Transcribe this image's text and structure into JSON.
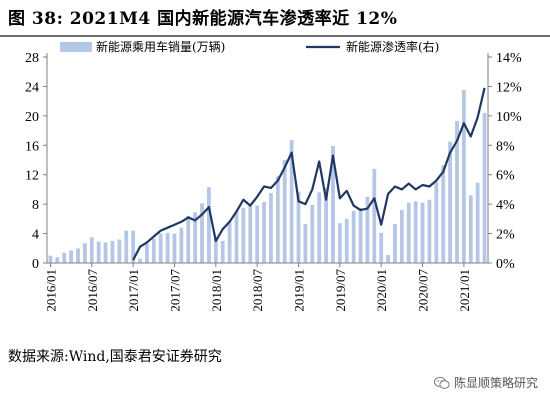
{
  "figure": {
    "title": "图 38:  2021M4 国内新能源汽车渗透率近 12%",
    "source": "数据来源:Wind,国泰君安证券研究",
    "watermark": "陈显顺策略研究"
  },
  "colors": {
    "bars": "#b4c7e7",
    "line": "#1f3864",
    "axis": "#808080"
  },
  "chart_data": {
    "type": "bar+line",
    "legend": {
      "placement": "top",
      "items": [
        "新能源乘用车销量(万辆)",
        "新能源渗透率(右)"
      ]
    },
    "x": [
      "2016/01",
      "2016/02",
      "2016/03",
      "2016/04",
      "2016/05",
      "2016/06",
      "2016/07",
      "2016/08",
      "2016/09",
      "2016/10",
      "2016/11",
      "2016/12",
      "2017/01",
      "2017/02",
      "2017/03",
      "2017/04",
      "2017/05",
      "2017/06",
      "2017/07",
      "2017/08",
      "2017/09",
      "2017/10",
      "2017/11",
      "2017/12",
      "2018/01",
      "2018/02",
      "2018/03",
      "2018/04",
      "2018/05",
      "2018/06",
      "2018/07",
      "2018/08",
      "2018/09",
      "2018/10",
      "2018/11",
      "2018/12",
      "2019/01",
      "2019/02",
      "2019/03",
      "2019/04",
      "2019/05",
      "2019/06",
      "2019/07",
      "2019/08",
      "2019/09",
      "2019/10",
      "2019/11",
      "2019/12",
      "2020/01",
      "2020/02",
      "2020/03",
      "2020/04",
      "2020/05",
      "2020/06",
      "2020/07",
      "2020/08",
      "2020/09",
      "2020/10",
      "2020/11",
      "2020/12",
      "2021/01",
      "2021/02",
      "2021/03",
      "2021/04"
    ],
    "x_tick_labels": [
      "2016/01",
      "2016/07",
      "2017/01",
      "2017/07",
      "2018/01",
      "2018/07",
      "2019/01",
      "2019/07",
      "2020/01",
      "2020/07",
      "2021/01"
    ],
    "series": [
      {
        "name": "新能源乘用车销量(万辆)",
        "type": "bar",
        "axis": "left",
        "values": [
          1.0,
          0.8,
          1.4,
          1.7,
          2.0,
          2.7,
          3.5,
          2.9,
          2.8,
          3.0,
          3.2,
          4.4,
          4.4,
          0.6,
          2.6,
          3.3,
          4.0,
          4.1,
          4.0,
          4.8,
          6.4,
          6.9,
          8.1,
          10.3,
          3.5,
          3.0,
          5.6,
          7.0,
          7.5,
          7.7,
          7.8,
          8.3,
          9.5,
          11.8,
          14.0,
          16.7,
          9.7,
          5.3,
          7.9,
          9.6,
          10.2,
          15.9,
          5.4,
          6.0,
          7.1,
          7.5,
          9.0,
          12.8,
          4.1,
          1.1,
          5.3,
          7.2,
          8.2,
          8.4,
          8.2,
          8.6,
          11.0,
          13.3,
          16.5,
          19.3,
          23.5,
          9.2,
          10.9,
          20.4
        ]
      },
      {
        "name": "新能源渗透率(右)",
        "type": "line",
        "axis": "right",
        "values": [
          null,
          null,
          null,
          null,
          null,
          null,
          null,
          null,
          null,
          null,
          null,
          null,
          0.2,
          1.1,
          1.4,
          1.8,
          2.2,
          2.4,
          2.6,
          2.8,
          3.1,
          2.9,
          3.3,
          3.8,
          1.5,
          2.3,
          2.8,
          3.5,
          4.3,
          3.9,
          4.5,
          5.2,
          5.1,
          5.6,
          6.5,
          7.5,
          4.2,
          4.0,
          5.0,
          6.9,
          4.3,
          7.3,
          4.4,
          4.9,
          3.9,
          3.6,
          3.7,
          4.4,
          2.6,
          4.7,
          5.2,
          5.0,
          5.4,
          5.0,
          5.3,
          5.2,
          5.6,
          6.2,
          7.5,
          8.3,
          9.5,
          8.6,
          9.9,
          11.9
        ]
      }
    ],
    "y_left": {
      "ylim": [
        0,
        28
      ],
      "ticks": [
        0,
        4,
        8,
        12,
        16,
        20,
        24,
        28
      ],
      "labels": [
        "0",
        "4",
        "8",
        "12",
        "16",
        "20",
        "24",
        "28"
      ]
    },
    "y_right": {
      "ylim": [
        0,
        14
      ],
      "ticks": [
        0,
        2,
        4,
        6,
        8,
        10,
        12,
        14
      ],
      "labels": [
        "0%",
        "2%",
        "4%",
        "6%",
        "8%",
        "10%",
        "12%",
        "14%"
      ]
    },
    "grid": false
  }
}
